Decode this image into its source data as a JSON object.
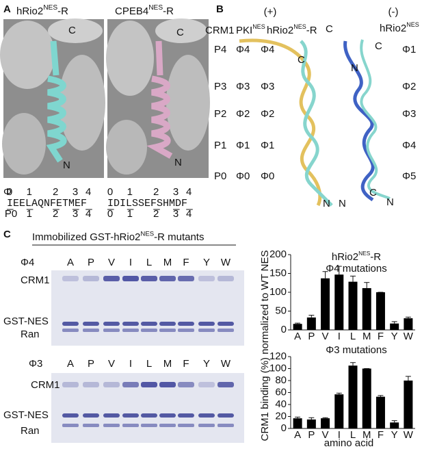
{
  "panel_a": {
    "letter": "A",
    "left_label": [
      "hRio2",
      "NES",
      "-R"
    ],
    "right_label": [
      "CPEB4",
      "NES",
      "-R"
    ],
    "left_c": "C",
    "left_n": "N",
    "right_c": "C",
    "right_n": "N",
    "phi_symbol": "Φ",
    "left_phi": [
      "0",
      "1",
      "2",
      "3",
      "4"
    ],
    "right_phi": [
      "0",
      "1",
      "2",
      "3",
      "4"
    ],
    "left_seq": "IEELAQNFETMEF",
    "right_seq": "IDILSSEFSHMDF",
    "left_p": [
      "P0",
      "1",
      "2",
      "3",
      "4"
    ],
    "right_p": [
      "0",
      "1",
      "2",
      "3",
      "4"
    ]
  },
  "panel_b": {
    "letter": "B",
    "plus": "(+)",
    "minus": "(-)",
    "crm1": "CRM1",
    "pki": [
      "PKI",
      "NES"
    ],
    "rio_r": [
      "hRio2",
      "NES",
      "-R"
    ],
    "rio_c": "C",
    "rio": [
      "hRio2",
      "NES"
    ],
    "pockets": [
      "P4",
      "P3",
      "P2",
      "P1",
      "P0"
    ],
    "pki_phi": [
      "Φ4",
      "Φ3",
      "Φ2",
      "Φ1",
      "Φ0"
    ],
    "rio_r_phi": [
      "Φ4",
      "Φ3",
      "Φ2",
      "Φ1",
      "Φ0"
    ],
    "rio_phi": [
      "Φ1",
      "Φ2",
      "Φ3",
      "Φ4",
      "Φ5"
    ],
    "ends": {
      "pki_c": "C",
      "pki_n": "N",
      "rio_r_n": "N",
      "rio_c": "C",
      "rio_n1": "N",
      "rio_c2": "C",
      "rio_n2": "N"
    }
  },
  "panel_c": {
    "letter": "C",
    "title": [
      "Immobilized GST-hRio2",
      "NES",
      "-R mutants"
    ],
    "gel1": {
      "phi": "Φ4",
      "lanes": [
        "A",
        "P",
        "V",
        "I",
        "L",
        "M",
        "F",
        "Y",
        "W"
      ],
      "crm1": "CRM1",
      "gst": "GST-NES",
      "ran": "Ran"
    },
    "gel2": {
      "phi": "Φ3",
      "lanes": [
        "A",
        "P",
        "V",
        "I",
        "L",
        "M",
        "F",
        "Y",
        "W"
      ],
      "crm1": "CRM1",
      "gst": "GST-NES",
      "ran": "Ran"
    },
    "y_label": "CRM1 binding (%) normalized to WT NES",
    "x_label": "amino acid"
  },
  "chart_data": [
    {
      "type": "bar",
      "title": [
        "hRio2",
        "NES",
        "-R"
      ],
      "subtitle": "Φ4 mutations",
      "categories": [
        "A",
        "P",
        "V",
        "I",
        "L",
        "M",
        "F",
        "Y",
        "W"
      ],
      "values": [
        16,
        33,
        137,
        147,
        128,
        111,
        100,
        17,
        31
      ],
      "errors": [
        2,
        6,
        18,
        22,
        15,
        15,
        0,
        5,
        3
      ],
      "color": "#000000",
      "ylim": [
        0,
        200
      ],
      "yticks": [
        0,
        50,
        100,
        150,
        200
      ]
    },
    {
      "type": "bar",
      "subtitle": "Φ3 mutations",
      "categories": [
        "A",
        "P",
        "V",
        "I",
        "L",
        "M",
        "F",
        "Y",
        "W"
      ],
      "values": [
        17,
        15,
        17,
        57,
        105,
        100,
        53,
        10,
        80
      ],
      "errors": [
        2,
        3,
        1,
        2,
        5,
        0,
        2,
        3,
        7
      ],
      "color": "#000000",
      "ylim": [
        0,
        120
      ],
      "yticks": [
        0,
        20,
        40,
        60,
        80,
        100,
        120
      ]
    }
  ]
}
